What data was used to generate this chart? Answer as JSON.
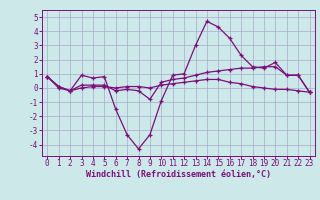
{
  "xlabel": "Windchill (Refroidissement éolien,°C)",
  "x": [
    0,
    1,
    2,
    3,
    4,
    5,
    6,
    7,
    8,
    9,
    10,
    11,
    12,
    13,
    14,
    15,
    16,
    17,
    18,
    19,
    20,
    21,
    22,
    23
  ],
  "line1": [
    0.8,
    0.1,
    -0.2,
    0.9,
    0.7,
    0.8,
    -1.5,
    -3.3,
    -4.3,
    -3.3,
    -0.9,
    0.9,
    1.0,
    3.0,
    4.7,
    4.3,
    3.5,
    2.3,
    1.5,
    1.4,
    1.8,
    0.9,
    0.9,
    -0.3
  ],
  "line2": [
    0.8,
    0.1,
    -0.2,
    0.2,
    0.2,
    0.2,
    -0.2,
    -0.1,
    -0.2,
    -0.8,
    0.4,
    0.6,
    0.7,
    0.9,
    1.1,
    1.2,
    1.3,
    1.4,
    1.4,
    1.5,
    1.5,
    0.9,
    0.9,
    -0.3
  ],
  "line3": [
    0.8,
    0.0,
    -0.2,
    0.0,
    0.1,
    0.1,
    0.0,
    0.1,
    0.1,
    0.0,
    0.2,
    0.3,
    0.4,
    0.5,
    0.6,
    0.6,
    0.4,
    0.3,
    0.1,
    0.0,
    -0.1,
    -0.1,
    -0.2,
    -0.3
  ],
  "line_color": "#7B0F7B",
  "bg_color": "#cce8e8",
  "grid_color": "#aaaacc",
  "ylim": [
    -4.8,
    5.5
  ],
  "xlim": [
    -0.5,
    23.5
  ],
  "yticks": [
    -4,
    -3,
    -2,
    -1,
    0,
    1,
    2,
    3,
    4,
    5
  ],
  "xticks": [
    0,
    1,
    2,
    3,
    4,
    5,
    6,
    7,
    8,
    9,
    10,
    11,
    12,
    13,
    14,
    15,
    16,
    17,
    18,
    19,
    20,
    21,
    22,
    23
  ],
  "tick_fontsize": 5.5,
  "xlabel_fontsize": 6.0
}
